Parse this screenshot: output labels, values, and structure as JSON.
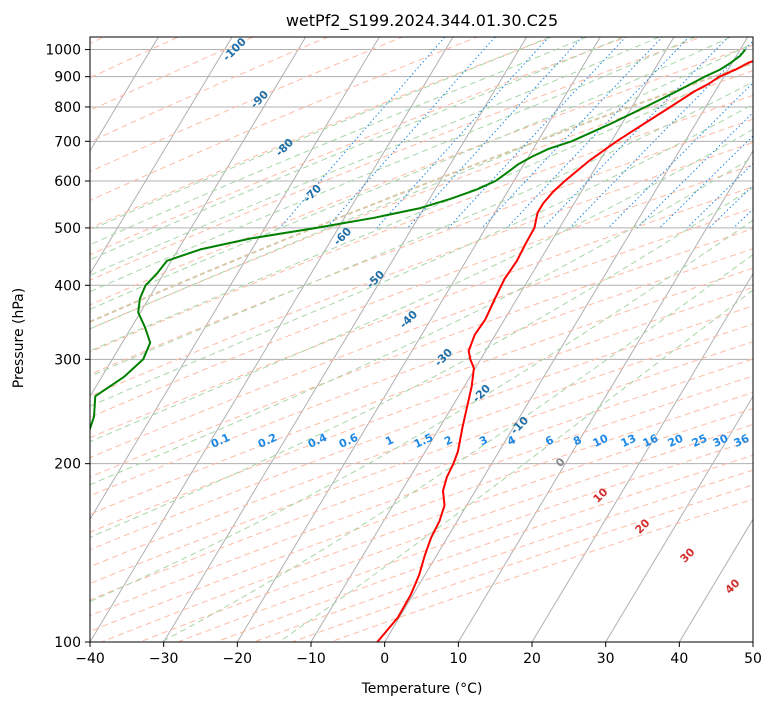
{
  "chart_data": {
    "type": "line",
    "title": "wetPf2_S199.2024.344.01.30.C25",
    "xlabel": "Temperature (°C)",
    "ylabel": "Pressure (hPa)",
    "xlim": [
      -40,
      50
    ],
    "ylim": [
      1050,
      100
    ],
    "y_scale": "log",
    "x_ticks": [
      -40,
      -30,
      -20,
      -10,
      0,
      10,
      20,
      30,
      40,
      50
    ],
    "y_ticks": [
      100,
      200,
      300,
      400,
      500,
      600,
      700,
      800,
      900,
      1000
    ],
    "grid": true,
    "colors": {
      "temperature": "#ff0000",
      "dewpoint": "#008000",
      "isotherm": "#b0b0b0",
      "dry_adiabat": "#fdbba6",
      "moist_adiabat": "#a8d5a8",
      "mixing_ratio": "#1e88e5",
      "dry_label": "#1f6fa8",
      "moist_label": "#d32f2f",
      "ccl_adiabat": "#d8c8a8"
    },
    "series": [
      {
        "key": "temperature",
        "pressure": [
          1000,
          975,
          950,
          925,
          900,
          875,
          850,
          800,
          750,
          700,
          650,
          600,
          575,
          550,
          530,
          500,
          470,
          440,
          410,
          380,
          350,
          330,
          310,
          300,
          290,
          270,
          250,
          230,
          210,
          200,
          190,
          180,
          170,
          160,
          150,
          140,
          130,
          120,
          110,
          100
        ],
        "temp": [
          5.2,
          4.0,
          2.2,
          1.0,
          -0.6,
          -1.5,
          -2.8,
          -4.8,
          -7.0,
          -9.3,
          -11.4,
          -13.1,
          -13.8,
          -14.2,
          -14.2,
          -13.4,
          -13.3,
          -13.1,
          -13.3,
          -13.0,
          -12.6,
          -12.8,
          -12.3,
          -11.4,
          -10.2,
          -9.0,
          -8.0,
          -6.9,
          -5.6,
          -5.2,
          -5.0,
          -4.4,
          -3.0,
          -2.4,
          -2.2,
          -1.6,
          -0.8,
          -0.3,
          -0.2,
          -1.0
        ]
      },
      {
        "key": "dewpoint",
        "pressure": [
          1000,
          975,
          950,
          925,
          900,
          850,
          800,
          750,
          700,
          680,
          660,
          640,
          620,
          600,
          580,
          560,
          540,
          520,
          500,
          480,
          460,
          440,
          420,
          400,
          380,
          360,
          340,
          320,
          300,
          280,
          260,
          240,
          220,
          210,
          200,
          190,
          180,
          170,
          160,
          150,
          140,
          130,
          120,
          110,
          100
        ],
        "dew": [
          0.7,
          0.5,
          -0.2,
          -1.1,
          -2.6,
          -5.2,
          -8.2,
          -11.5,
          -15.4,
          -17.9,
          -19.5,
          -20.8,
          -21.6,
          -22.5,
          -24.4,
          -27.1,
          -30.5,
          -36.0,
          -43.0,
          -51.0,
          -57.0,
          -60.6,
          -60.9,
          -61.5,
          -61.2,
          -60.3,
          -58.2,
          -56.2,
          -55.8,
          -57.0,
          -59.3,
          -57.8,
          -57.0,
          -58.0,
          -57.3,
          -54.6,
          -54.2,
          -55.3,
          -56.0,
          -54.6,
          -53.6,
          -53.3,
          -53.1,
          -53.2,
          -53.5
        ]
      }
    ],
    "iso_labels": {
      "dry": [
        "-100",
        "-90",
        "-80",
        "-70",
        "-60",
        "-50",
        "-40",
        "-30",
        "-20",
        "-10"
      ],
      "moist": [
        "0",
        "10",
        "20",
        "30",
        "40"
      ],
      "mixing": [
        "0.1",
        "0.2",
        "0.4",
        "0.6",
        "1",
        "1.5",
        "2",
        "3",
        "4",
        "6",
        "8",
        "10",
        "13",
        "16",
        "20",
        "25",
        "30",
        "36"
      ]
    }
  }
}
